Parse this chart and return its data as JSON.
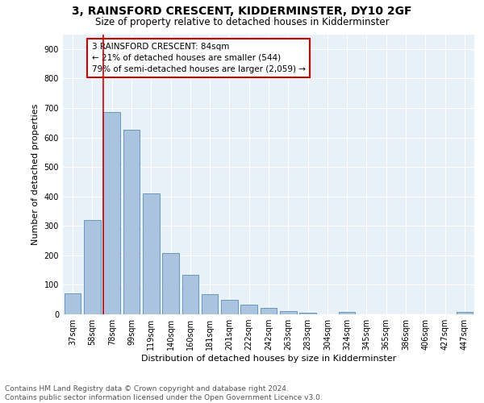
{
  "title1": "3, RAINSFORD CRESCENT, KIDDERMINSTER, DY10 2GF",
  "title2": "Size of property relative to detached houses in Kidderminster",
  "xlabel": "Distribution of detached houses by size in Kidderminster",
  "ylabel": "Number of detached properties",
  "categories": [
    "37sqm",
    "58sqm",
    "78sqm",
    "99sqm",
    "119sqm",
    "140sqm",
    "160sqm",
    "181sqm",
    "201sqm",
    "222sqm",
    "242sqm",
    "263sqm",
    "283sqm",
    "304sqm",
    "324sqm",
    "345sqm",
    "365sqm",
    "386sqm",
    "406sqm",
    "427sqm",
    "447sqm"
  ],
  "values": [
    70,
    320,
    685,
    625,
    410,
    208,
    135,
    68,
    48,
    33,
    22,
    12,
    5,
    0,
    8,
    0,
    0,
    0,
    0,
    0,
    8
  ],
  "bar_color": "#aac4e0",
  "bar_edge_color": "#6699bb",
  "vline_color": "#cc0000",
  "vline_index": 2,
  "annotation_line1": "3 RAINSFORD CRESCENT: 84sqm",
  "annotation_line2": "← 21% of detached houses are smaller (544)",
  "annotation_line3": "79% of semi-detached houses are larger (2,059) →",
  "annotation_box_color": "#ffffff",
  "annotation_box_edge": "#cc0000",
  "ylim": [
    0,
    950
  ],
  "yticks": [
    0,
    100,
    200,
    300,
    400,
    500,
    600,
    700,
    800,
    900
  ],
  "background_color": "#e8f0f8",
  "footer1": "Contains HM Land Registry data © Crown copyright and database right 2024.",
  "footer2": "Contains public sector information licensed under the Open Government Licence v3.0.",
  "title1_fontsize": 10,
  "title2_fontsize": 8.5,
  "axis_label_fontsize": 8,
  "tick_fontsize": 7,
  "annotation_fontsize": 7.5,
  "footer_fontsize": 6.5
}
